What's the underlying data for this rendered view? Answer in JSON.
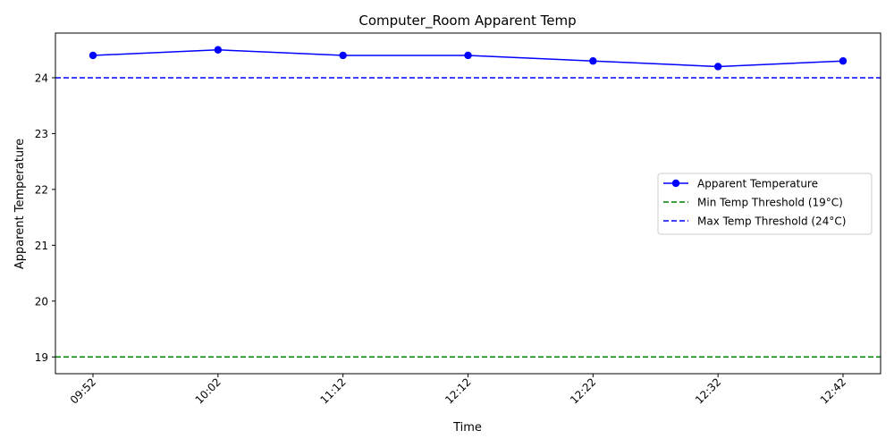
{
  "chart_data": {
    "type": "line",
    "title": "Computer_Room Apparent Temp",
    "xlabel": "Time",
    "ylabel": "Apparent Temperature",
    "categories": [
      "09:52",
      "10:02",
      "11:12",
      "12:12",
      "12:22",
      "12:32",
      "12:42"
    ],
    "series": [
      {
        "name": "Apparent Temperature",
        "values": [
          24.4,
          24.5,
          24.4,
          24.4,
          24.3,
          24.2,
          24.3
        ],
        "color": "#0000ff",
        "marker": "circle"
      }
    ],
    "thresholds": [
      {
        "name": "Min Temp Threshold (19°C)",
        "value": 19,
        "color": "#008000",
        "style": "dashed"
      },
      {
        "name": "Max Temp Threshold (24°C)",
        "value": 24,
        "color": "#0000ff",
        "style": "dashed"
      }
    ],
    "ylim": [
      18.7,
      24.8
    ],
    "yticks": [
      "19",
      "20",
      "21",
      "22",
      "23",
      "24"
    ],
    "grid": false,
    "legend_position": "center-right",
    "xtick_rotation": 45
  }
}
